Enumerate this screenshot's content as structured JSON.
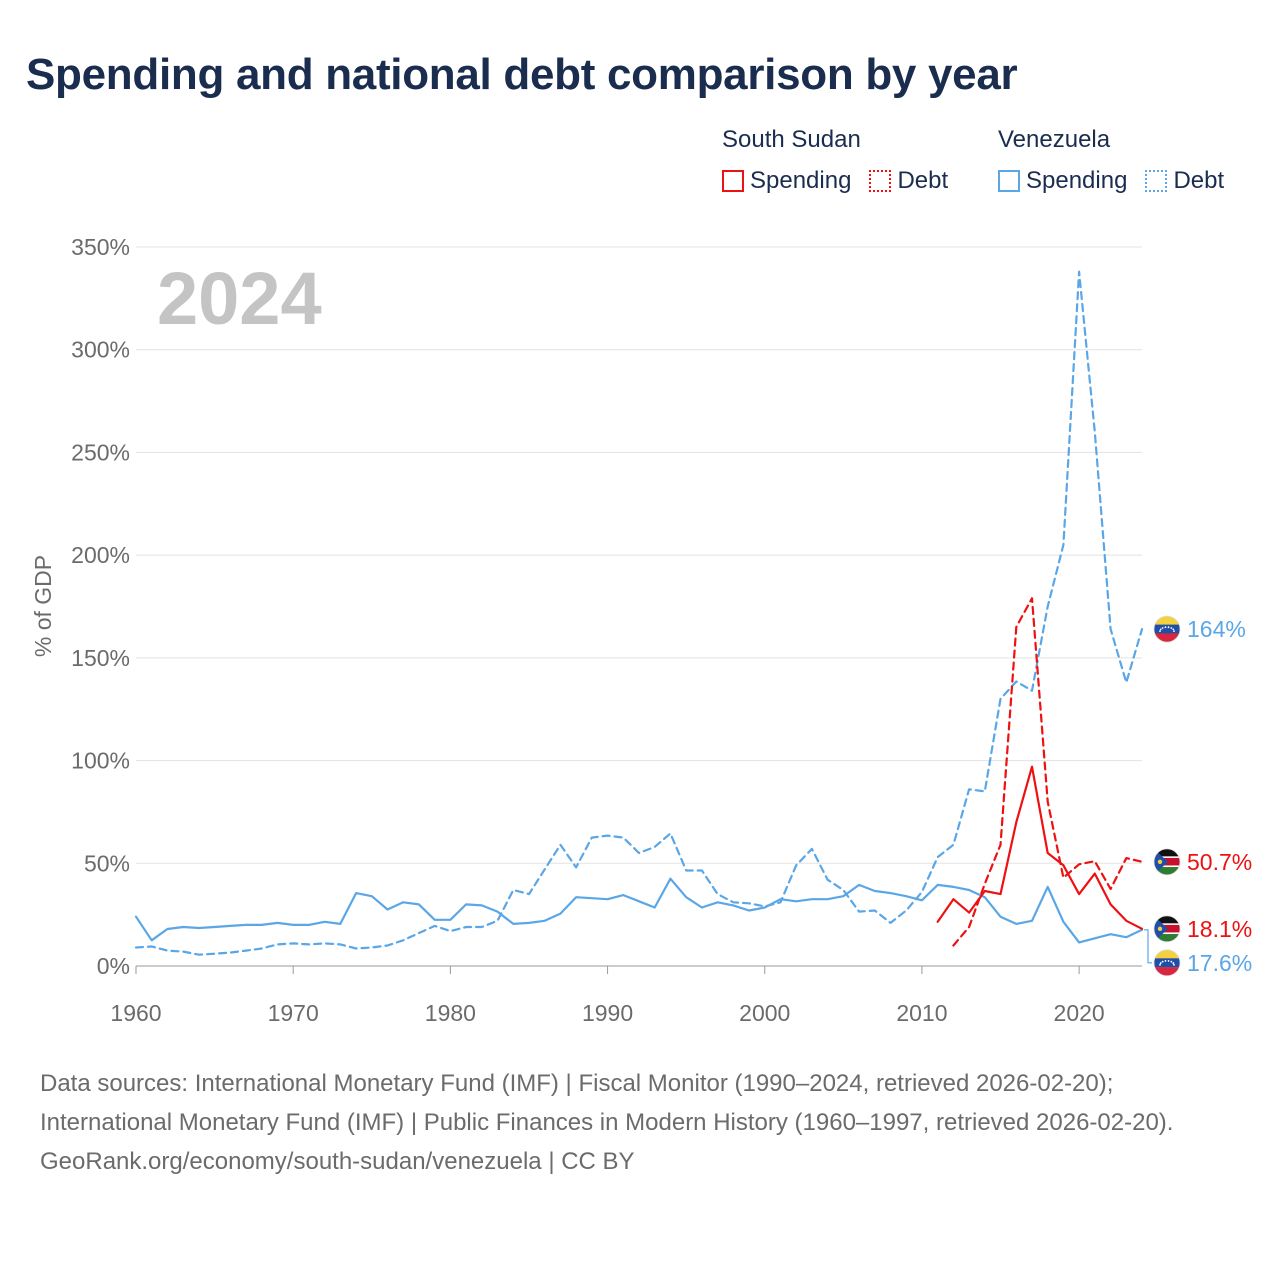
{
  "title": "Spending and national debt comparison by year",
  "colors": {
    "south_sudan": "#ee1111",
    "venezuela": "#5aa6e6",
    "grid": "#e3e3e3",
    "axis_text": "#6b6b6b",
    "title": "#1b2d4f",
    "year_watermark": "#c4c4c4"
  },
  "legend": {
    "groups": [
      {
        "country": "South Sudan",
        "spending_label": "Spending",
        "debt_label": "Debt",
        "color": "#ee1111"
      },
      {
        "country": "Venezuela",
        "spending_label": "Spending",
        "debt_label": "Debt",
        "color": "#5aa6e6"
      }
    ]
  },
  "footer": {
    "sources": "Data sources: International Monetary Fund (IMF) | Fiscal Monitor (1990–2024, retrieved 2026-02-20); International Monetary Fund (IMF) | Public Finances in Modern History (1960–1997, retrieved 2026-02-20).",
    "credit": "GeoRank.org/economy/south-sudan/venezuela | CC BY"
  },
  "chart_data": {
    "type": "line",
    "title": "Spending and national debt comparison by year",
    "year_label": "2024",
    "ylabel": "% of GDP",
    "xlabel": "",
    "xlim": [
      1960,
      2024
    ],
    "ylim": [
      0,
      350
    ],
    "x_ticks": [
      1960,
      1970,
      1980,
      1990,
      2000,
      2010,
      2020
    ],
    "y_ticks": [
      0,
      50,
      100,
      150,
      200,
      250,
      300,
      350
    ],
    "y_tick_labels": [
      "0%",
      "50%",
      "100%",
      "150%",
      "200%",
      "250%",
      "300%",
      "350%"
    ],
    "grid": true,
    "series": [
      {
        "name": "Venezuela Spending",
        "country": "Venezuela",
        "kind": "spending",
        "style": "solid",
        "color": "#5aa6e6",
        "end_label": "17.6%",
        "end_flag": "Venezuela",
        "x": [
          1960,
          1961,
          1962,
          1963,
          1964,
          1965,
          1966,
          1967,
          1968,
          1969,
          1970,
          1971,
          1972,
          1973,
          1974,
          1975,
          1976,
          1977,
          1978,
          1979,
          1980,
          1981,
          1982,
          1983,
          1984,
          1985,
          1986,
          1987,
          1988,
          1989,
          1990,
          1991,
          1992,
          1993,
          1994,
          1995,
          1996,
          1997,
          1998,
          1999,
          2000,
          2001,
          2002,
          2003,
          2004,
          2005,
          2006,
          2007,
          2008,
          2009,
          2010,
          2011,
          2012,
          2013,
          2014,
          2015,
          2016,
          2017,
          2018,
          2019,
          2020,
          2021,
          2022,
          2023,
          2024
        ],
        "y": [
          24,
          12.5,
          18,
          19,
          18.5,
          19,
          19.5,
          20,
          20,
          21,
          20,
          20,
          21.5,
          20.5,
          35.5,
          34,
          27.5,
          31,
          30,
          22.5,
          22.5,
          30,
          29.5,
          26.5,
          20.5,
          21,
          22,
          25.5,
          33.5,
          33,
          32.5,
          34.5,
          31.5,
          28.5,
          42.5,
          33.5,
          28.5,
          31,
          29.5,
          27,
          28.5,
          32.5,
          31.5,
          32.5,
          32.5,
          34,
          39.5,
          36.5,
          35.5,
          34,
          32,
          39.5,
          38.5,
          37,
          33.5,
          24,
          20.5,
          22,
          38.5,
          21.5,
          11.5,
          13.5,
          15.5,
          14,
          17.6
        ]
      },
      {
        "name": "Venezuela Debt",
        "country": "Venezuela",
        "kind": "debt",
        "style": "dashed",
        "color": "#5aa6e6",
        "end_label": "164%",
        "end_flag": "Venezuela",
        "x": [
          1960,
          1961,
          1962,
          1963,
          1964,
          1965,
          1966,
          1967,
          1968,
          1969,
          1970,
          1971,
          1972,
          1973,
          1974,
          1975,
          1976,
          1977,
          1978,
          1979,
          1980,
          1981,
          1982,
          1983,
          1984,
          1985,
          1986,
          1987,
          1988,
          1989,
          1990,
          1991,
          1992,
          1993,
          1994,
          1995,
          1996,
          1997,
          1998,
          1999,
          2000,
          2001,
          2002,
          2003,
          2004,
          2005,
          2006,
          2007,
          2008,
          2009,
          2010,
          2011,
          2012,
          2013,
          2014,
          2015,
          2016,
          2017,
          2018,
          2019,
          2020,
          2021,
          2022,
          2023,
          2024
        ],
        "y": [
          9,
          9.5,
          7.5,
          7,
          5.5,
          6,
          6.5,
          7.5,
          8.5,
          10.5,
          11,
          10.5,
          11,
          10.5,
          8.5,
          9,
          10,
          12.5,
          16,
          19.5,
          17,
          19,
          19,
          22,
          37,
          35,
          47,
          59,
          48,
          62.5,
          63.5,
          62.5,
          55,
          58,
          64.5,
          46.5,
          46.5,
          35,
          31,
          30.5,
          29,
          31,
          49,
          57,
          42,
          37,
          26.5,
          27,
          21,
          27,
          36,
          53,
          59,
          86,
          85,
          130,
          138.5,
          134,
          175,
          205,
          338,
          260,
          164,
          138,
          164
        ]
      },
      {
        "name": "South Sudan Spending",
        "country": "South Sudan",
        "kind": "spending",
        "style": "solid",
        "color": "#ee1111",
        "end_label": "18.1%",
        "end_flag": "South Sudan",
        "x": [
          2011,
          2012,
          2013,
          2014,
          2015,
          2016,
          2017,
          2018,
          2019,
          2020,
          2021,
          2022,
          2023,
          2024
        ],
        "y": [
          21.5,
          32.5,
          26,
          36.5,
          35,
          70,
          97,
          55,
          49,
          35,
          45,
          30,
          22,
          18.1
        ]
      },
      {
        "name": "South Sudan Debt",
        "country": "South Sudan",
        "kind": "debt",
        "style": "dashed",
        "color": "#ee1111",
        "end_label": "50.7%",
        "end_flag": "South Sudan",
        "x": [
          2012,
          2013,
          2014,
          2015,
          2016,
          2017,
          2018,
          2019,
          2020,
          2021,
          2022,
          2023,
          2024
        ],
        "y": [
          10,
          19,
          40,
          59,
          165,
          179,
          80,
          43,
          49.5,
          51,
          37.5,
          52.5,
          50.7
        ]
      }
    ]
  }
}
